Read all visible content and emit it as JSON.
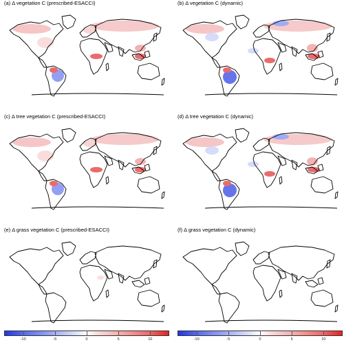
{
  "panels": [
    {
      "id": "a",
      "title": "(a) Δ vegetation C (prescribed-ESACCI)"
    },
    {
      "id": "b",
      "title": "(b) Δ vegetation C (dynamic)"
    },
    {
      "id": "c",
      "title": "(c) Δ tree vegetation C (prescribed-ESACCI)"
    },
    {
      "id": "d",
      "title": "(d) Δ tree vegetation C (dynamic)"
    },
    {
      "id": "e",
      "title": "(e) Δ grass vegetation C (prescribed-ESACCI)"
    },
    {
      "id": "f",
      "title": "(f) Δ grass vegetation C (dynamic)"
    }
  ],
  "colorbar": {
    "ticks": [
      "-10",
      "-5",
      "0",
      "5",
      "10"
    ],
    "range": [
      -13,
      13
    ],
    "tick_values": [
      -10,
      -5,
      0,
      5,
      10
    ],
    "colors": {
      "negative": "#2436e6",
      "zero": "#ffffff",
      "positive": "#e52222"
    }
  }
}
